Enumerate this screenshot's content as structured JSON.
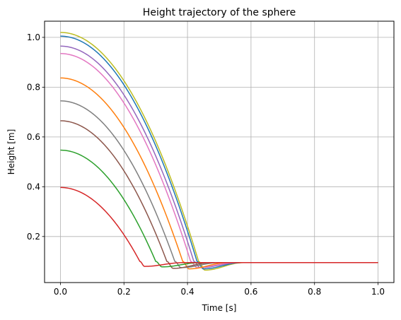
{
  "chart_data": {
    "type": "line",
    "title": "Height trajectory of the sphere",
    "xlabel": "Time [s]",
    "ylabel": "Height [m]",
    "xlim": [
      -0.05,
      1.05
    ],
    "ylim": [
      0.015,
      1.065
    ],
    "xticks": [
      0.0,
      0.2,
      0.4,
      0.6,
      0.8,
      1.0
    ],
    "xtick_labels": [
      "0.0",
      "0.2",
      "0.4",
      "0.6",
      "0.8",
      "1.0"
    ],
    "yticks": [
      0.2,
      0.4,
      0.6,
      0.8,
      1.0
    ],
    "ytick_labels": [
      "0.2",
      "0.4",
      "0.6",
      "0.8",
      "1.0"
    ],
    "grid": true,
    "legend": false,
    "settle_height": 0.095,
    "series": [
      {
        "color": "#bcbd22",
        "h0": 1.02,
        "contact_time": 0.435,
        "min_height": 0.065,
        "min_time": 0.455
      },
      {
        "color": "#1f77b4",
        "h0": 1.005,
        "contact_time": 0.43,
        "min_height": 0.07,
        "min_time": 0.45
      },
      {
        "color": "#9467bd",
        "h0": 0.965,
        "contact_time": 0.42,
        "min_height": 0.075,
        "min_time": 0.44
      },
      {
        "color": "#e377c2",
        "h0": 0.935,
        "contact_time": 0.41,
        "min_height": 0.075,
        "min_time": 0.43
      },
      {
        "color": "#ff7f0e",
        "h0": 0.837,
        "contact_time": 0.385,
        "min_height": 0.07,
        "min_time": 0.405
      },
      {
        "color": "#7f7f7f",
        "h0": 0.745,
        "contact_time": 0.36,
        "min_height": 0.075,
        "min_time": 0.38
      },
      {
        "color": "#8c564b",
        "h0": 0.665,
        "contact_time": 0.335,
        "min_height": 0.072,
        "min_time": 0.355
      },
      {
        "color": "#2ca02c",
        "h0": 0.547,
        "contact_time": 0.3,
        "min_height": 0.078,
        "min_time": 0.32
      },
      {
        "color": "#d62728",
        "h0": 0.397,
        "contact_time": 0.25,
        "min_height": 0.08,
        "min_time": 0.265
      }
    ]
  }
}
